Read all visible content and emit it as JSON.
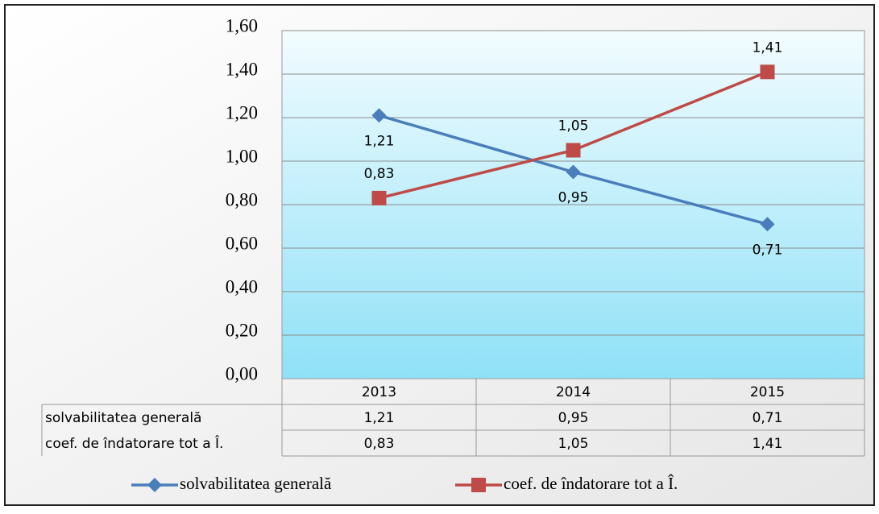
{
  "chart_data": {
    "type": "line",
    "categories": [
      "2013",
      "2014",
      "2015"
    ],
    "series": [
      {
        "name": "solvabilitatea generală",
        "color": "#4a7ebb",
        "marker": "diamond",
        "values": [
          1.21,
          0.95,
          0.71
        ],
        "value_labels": [
          "1,21",
          "0,95",
          "0,71"
        ]
      },
      {
        "name": "coef. de îndatorare tot a Î.",
        "color": "#be4b48",
        "marker": "square",
        "values": [
          0.83,
          1.05,
          1.41
        ],
        "value_labels": [
          "0,83",
          "1,05",
          "1,41"
        ]
      }
    ],
    "ylim": [
      0,
      1.6
    ],
    "yticks": [
      {
        "value": 0,
        "label": "0,00"
      },
      {
        "value": 0.2,
        "label": "0,20"
      },
      {
        "value": 0.4,
        "label": "0,40"
      },
      {
        "value": 0.6,
        "label": "0,60"
      },
      {
        "value": 0.8,
        "label": "0,80"
      },
      {
        "value": 1,
        "label": "1,00"
      },
      {
        "value": 1.2,
        "label": "1,20"
      },
      {
        "value": 1.4,
        "label": "1,40"
      },
      {
        "value": 1.6,
        "label": "1,60"
      }
    ],
    "grid": true,
    "data_table": true,
    "legend": "bottom"
  }
}
